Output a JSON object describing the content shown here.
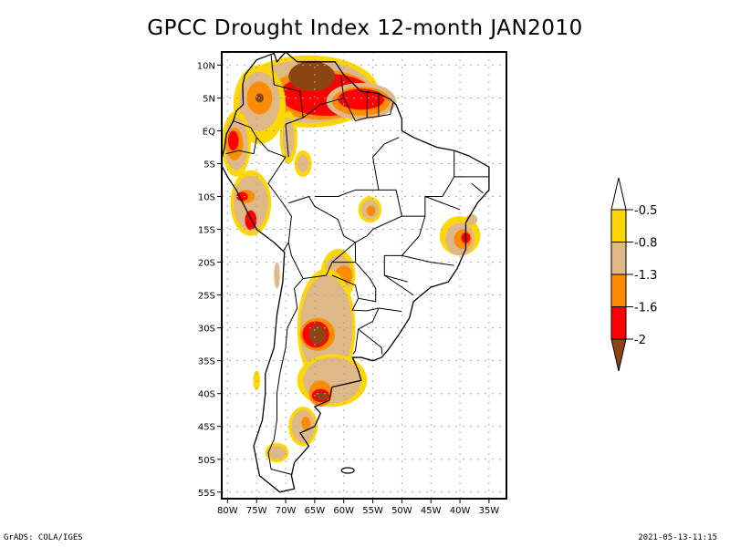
{
  "title": "GPCC Drought Index 12-month JAN2010",
  "footer": {
    "left": "GrADS: COLA/IGES",
    "right": "2021-05-13-11:15"
  },
  "chart_data": {
    "type": "heatmap",
    "title": "GPCC Drought Index 12-month JAN2010",
    "projection": "latlon",
    "lon_range": [
      -81,
      -32
    ],
    "lat_range": [
      -56,
      12
    ],
    "grid": true,
    "xticks": [
      {
        "value": -80,
        "label": "80W"
      },
      {
        "value": -75,
        "label": "75W"
      },
      {
        "value": -70,
        "label": "70W"
      },
      {
        "value": -65,
        "label": "65W"
      },
      {
        "value": -60,
        "label": "60W"
      },
      {
        "value": -55,
        "label": "55W"
      },
      {
        "value": -50,
        "label": "50W"
      },
      {
        "value": -45,
        "label": "45W"
      },
      {
        "value": -40,
        "label": "40W"
      },
      {
        "value": -35,
        "label": "35W"
      }
    ],
    "yticks": [
      {
        "value": 10,
        "label": "10N"
      },
      {
        "value": 5,
        "label": "5N"
      },
      {
        "value": 0,
        "label": "EQ"
      },
      {
        "value": -5,
        "label": "5S"
      },
      {
        "value": -10,
        "label": "10S"
      },
      {
        "value": -15,
        "label": "15S"
      },
      {
        "value": -20,
        "label": "20S"
      },
      {
        "value": -25,
        "label": "25S"
      },
      {
        "value": -30,
        "label": "30S"
      },
      {
        "value": -35,
        "label": "35S"
      },
      {
        "value": -40,
        "label": "40S"
      },
      {
        "value": -45,
        "label": "45S"
      },
      {
        "value": -50,
        "label": "50S"
      },
      {
        "value": -55,
        "label": "55S"
      }
    ],
    "legend": {
      "placement": "right",
      "levels": [
        {
          "label": "-0.5",
          "color": "#ffffff",
          "range": "> -0.5"
        },
        {
          "label": "-0.8",
          "color": "#ffd700",
          "range": "-0.8 to -0.5"
        },
        {
          "label": "-1.3",
          "color": "#deb887",
          "range": "-1.3 to -0.8"
        },
        {
          "label": "-1.6",
          "color": "#ff8c00",
          "range": "-1.6 to -1.3"
        },
        {
          "label": "-2",
          "color": "#ff0000",
          "range": "-2 to -1.6"
        },
        {
          "label": "",
          "color": "#8b4513",
          "range": "< -2"
        }
      ],
      "tick_labels": [
        "-0.5",
        "-0.8",
        "-1.3",
        "-1.6",
        "-2"
      ]
    },
    "regions": [
      {
        "name": "venezuela-north",
        "lon": -65.5,
        "lat": 8.5,
        "level": 5,
        "rx": 4,
        "ry": 2.5
      },
      {
        "name": "venezuela-red",
        "lon": -64,
        "lat": 5.5,
        "level": 4,
        "rx": 6,
        "ry": 3
      },
      {
        "name": "guyana-red",
        "lon": -57,
        "lat": 4.5,
        "level": 4,
        "rx": 5,
        "ry": 2
      },
      {
        "name": "colombia-west",
        "lon": -75,
        "lat": 5,
        "level": 3,
        "rx": 3,
        "ry": 3
      },
      {
        "name": "colombia-brown",
        "lon": -74.5,
        "lat": 5,
        "level": 5,
        "rx": 0.7,
        "ry": 0.7
      },
      {
        "name": "ecuador",
        "lon": -79,
        "lat": -1.5,
        "level": 4,
        "rx": 1.5,
        "ry": 2
      },
      {
        "name": "peru-north",
        "lon": -77.5,
        "lat": -10,
        "level": 4,
        "rx": 1.5,
        "ry": 1
      },
      {
        "name": "peru-south",
        "lon": -76,
        "lat": -13.5,
        "level": 4,
        "rx": 1,
        "ry": 1.5
      },
      {
        "name": "mato-grosso",
        "lon": -55.5,
        "lat": -12,
        "level": 3,
        "rx": 1.5,
        "ry": 1.5
      },
      {
        "name": "bahia-coast",
        "lon": -39,
        "lat": -16,
        "level": 4,
        "rx": 1,
        "ry": 1
      },
      {
        "name": "paraguay",
        "lon": -61,
        "lat": -21,
        "level": 3,
        "rx": 2,
        "ry": 2
      },
      {
        "name": "argentina-central",
        "lon": -65,
        "lat": -31,
        "level": 5,
        "rx": 2,
        "ry": 2
      },
      {
        "name": "argentina-south",
        "lon": -64,
        "lat": -40,
        "level": 5,
        "rx": 1.5,
        "ry": 0.8
      }
    ]
  }
}
